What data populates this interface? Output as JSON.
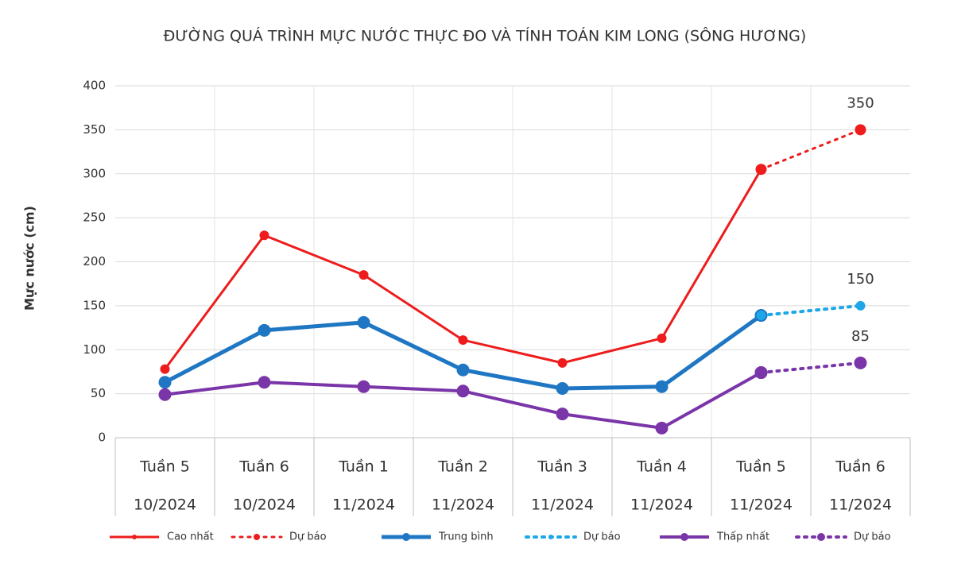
{
  "chart_data": {
    "type": "line",
    "title": "ĐƯỜNG QUÁ TRÌNH MỰC NƯỚC THỰC ĐO VÀ TÍNH TOÁN KIM LONG (SÔNG HƯƠNG)",
    "y_label": "Mực nước (cm)",
    "categories": [
      [
        "Tuần 5",
        "10/2024"
      ],
      [
        "Tuần 6",
        "10/2024"
      ],
      [
        "Tuần 1",
        "11/2024"
      ],
      [
        "Tuần 2",
        "11/2024"
      ],
      [
        "Tuần 3",
        "11/2024"
      ],
      [
        "Tuần 4",
        "11/2024"
      ],
      [
        "Tuần 5",
        "11/2024"
      ],
      [
        "Tuần 6",
        "11/2024"
      ]
    ],
    "ylim": [
      0,
      400
    ],
    "yticks": [
      0,
      50,
      100,
      150,
      200,
      250,
      300,
      350,
      400
    ],
    "grid": true,
    "legend": "bottom",
    "series": [
      {
        "name": "Cao nhất",
        "color": "#ee1c1c",
        "style": "solid",
        "width": 3,
        "marker": 6,
        "values": [
          78,
          230,
          185,
          111,
          85,
          113,
          305,
          null
        ]
      },
      {
        "name": "Dự báo",
        "color": "#ee1c1c",
        "style": "dotted",
        "width": 3,
        "marker": 7,
        "labels": true,
        "values": [
          null,
          null,
          null,
          null,
          null,
          null,
          305,
          350
        ]
      },
      {
        "name": "Trung bình",
        "color": "#1f77c4",
        "style": "solid",
        "width": 5,
        "marker": 8,
        "values": [
          63,
          122,
          131,
          77,
          56,
          58,
          139,
          null
        ]
      },
      {
        "name": "Dự báo",
        "color": "#1ea7e8",
        "style": "dotted",
        "width": 4,
        "marker": 6,
        "labels": true,
        "values": [
          null,
          null,
          null,
          null,
          null,
          null,
          139,
          150
        ]
      },
      {
        "name": "Thấp nhất",
        "color": "#7a35a8",
        "style": "solid",
        "width": 4,
        "marker": 8,
        "values": [
          49,
          63,
          58,
          53,
          27,
          11,
          74,
          null
        ]
      },
      {
        "name": "Dự báo",
        "color": "#7a35a8",
        "style": "dotted",
        "width": 4,
        "marker": 8,
        "labels": true,
        "values": [
          null,
          null,
          null,
          null,
          null,
          null,
          74,
          85
        ]
      }
    ]
  }
}
